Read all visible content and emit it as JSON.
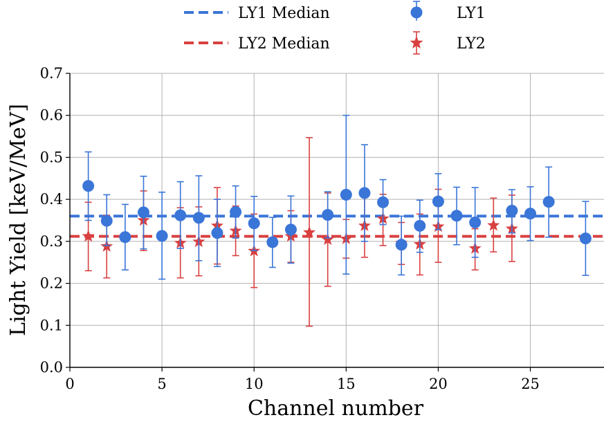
{
  "chart_data": {
    "type": "scatter",
    "xlabel": "Channel number",
    "ylabel": "Light Yield [keV/MeV]",
    "xlim": [
      0,
      29
    ],
    "ylim": [
      0,
      0.7
    ],
    "xticks": [
      0,
      5,
      10,
      15,
      20,
      25
    ],
    "yticks": [
      0.0,
      0.1,
      0.2,
      0.3,
      0.4,
      0.5,
      0.6,
      0.7
    ],
    "x_tick_labels": [
      "0",
      "5",
      "10",
      "15",
      "20",
      "25"
    ],
    "y_tick_labels": [
      "0.0",
      "0.1",
      "0.2",
      "0.3",
      "0.4",
      "0.5",
      "0.6",
      "0.7"
    ],
    "grid": true,
    "legend_position": "top, outside plot, two columns",
    "series": [
      {
        "name": "LY1",
        "marker": "circle",
        "color": "#3a75d8",
        "points": [
          {
            "x": 1,
            "y": 0.432,
            "lo": 0.35,
            "hi": 0.513
          },
          {
            "x": 2,
            "y": 0.349,
            "lo": 0.29,
            "hi": 0.411
          },
          {
            "x": 3,
            "y": 0.31,
            "lo": 0.232,
            "hi": 0.388
          },
          {
            "x": 4,
            "y": 0.369,
            "lo": 0.282,
            "hi": 0.455
          },
          {
            "x": 5,
            "y": 0.313,
            "lo": 0.21,
            "hi": 0.417
          },
          {
            "x": 6,
            "y": 0.362,
            "lo": 0.283,
            "hi": 0.442
          },
          {
            "x": 7,
            "y": 0.356,
            "lo": 0.254,
            "hi": 0.456
          },
          {
            "x": 8,
            "y": 0.32,
            "lo": 0.24,
            "hi": 0.4
          },
          {
            "x": 9,
            "y": 0.37,
            "lo": 0.308,
            "hi": 0.432
          },
          {
            "x": 10,
            "y": 0.343,
            "lo": 0.278,
            "hi": 0.407
          },
          {
            "x": 11,
            "y": 0.298,
            "lo": 0.238,
            "hi": 0.357
          },
          {
            "x": 12,
            "y": 0.328,
            "lo": 0.248,
            "hi": 0.408
          },
          {
            "x": 14,
            "y": 0.363,
            "lo": 0.308,
            "hi": 0.418
          },
          {
            "x": 15,
            "y": 0.411,
            "lo": 0.222,
            "hi": 0.6
          },
          {
            "x": 16,
            "y": 0.415,
            "lo": 0.3,
            "hi": 0.53
          },
          {
            "x": 17,
            "y": 0.393,
            "lo": 0.34,
            "hi": 0.447
          },
          {
            "x": 18,
            "y": 0.292,
            "lo": 0.22,
            "hi": 0.36
          },
          {
            "x": 19,
            "y": 0.337,
            "lo": 0.274,
            "hi": 0.398
          },
          {
            "x": 20,
            "y": 0.395,
            "lo": 0.328,
            "hi": 0.461
          },
          {
            "x": 21,
            "y": 0.361,
            "lo": 0.292,
            "hi": 0.429
          },
          {
            "x": 22,
            "y": 0.345,
            "lo": 0.262,
            "hi": 0.428
          },
          {
            "x": 24,
            "y": 0.373,
            "lo": 0.32,
            "hi": 0.423
          },
          {
            "x": 25,
            "y": 0.366,
            "lo": 0.302,
            "hi": 0.43
          },
          {
            "x": 26,
            "y": 0.394,
            "lo": 0.31,
            "hi": 0.477
          },
          {
            "x": 28,
            "y": 0.307,
            "lo": 0.219,
            "hi": 0.395
          }
        ]
      },
      {
        "name": "LY2",
        "marker": "star",
        "color": "#d94040",
        "points": [
          {
            "x": 1,
            "y": 0.312,
            "lo": 0.23,
            "hi": 0.393
          },
          {
            "x": 2,
            "y": 0.288,
            "lo": 0.213,
            "hi": 0.362
          },
          {
            "x": 4,
            "y": 0.35,
            "lo": 0.278,
            "hi": 0.42
          },
          {
            "x": 6,
            "y": 0.296,
            "lo": 0.213,
            "hi": 0.38
          },
          {
            "x": 7,
            "y": 0.299,
            "lo": 0.218,
            "hi": 0.382
          },
          {
            "x": 8,
            "y": 0.337,
            "lo": 0.246,
            "hi": 0.428
          },
          {
            "x": 9,
            "y": 0.325,
            "lo": 0.266,
            "hi": 0.384
          },
          {
            "x": 10,
            "y": 0.277,
            "lo": 0.19,
            "hi": 0.365
          },
          {
            "x": 12,
            "y": 0.312,
            "lo": 0.25,
            "hi": 0.373
          },
          {
            "x": 13,
            "y": 0.321,
            "lo": 0.098,
            "hi": 0.547
          },
          {
            "x": 14,
            "y": 0.304,
            "lo": 0.193,
            "hi": 0.415
          },
          {
            "x": 15,
            "y": 0.306,
            "lo": 0.26,
            "hi": 0.352
          },
          {
            "x": 16,
            "y": 0.337,
            "lo": 0.262,
            "hi": 0.41
          },
          {
            "x": 17,
            "y": 0.354,
            "lo": 0.29,
            "hi": 0.412
          },
          {
            "x": 18,
            "y": 0.296,
            "lo": 0.245,
            "hi": 0.345
          },
          {
            "x": 19,
            "y": 0.293,
            "lo": 0.22,
            "hi": 0.365
          },
          {
            "x": 20,
            "y": 0.335,
            "lo": 0.25,
            "hi": 0.424
          },
          {
            "x": 22,
            "y": 0.283,
            "lo": 0.232,
            "hi": 0.33
          },
          {
            "x": 23,
            "y": 0.338,
            "lo": 0.275,
            "hi": 0.403
          },
          {
            "x": 24,
            "y": 0.33,
            "lo": 0.252,
            "hi": 0.41
          }
        ]
      }
    ],
    "medians": [
      {
        "name": "LY1 Median",
        "value": 0.36,
        "color": "#3a75d8",
        "style": "dashed"
      },
      {
        "name": "LY2 Median",
        "value": 0.312,
        "color": "#d94040",
        "style": "dashed"
      }
    ]
  }
}
